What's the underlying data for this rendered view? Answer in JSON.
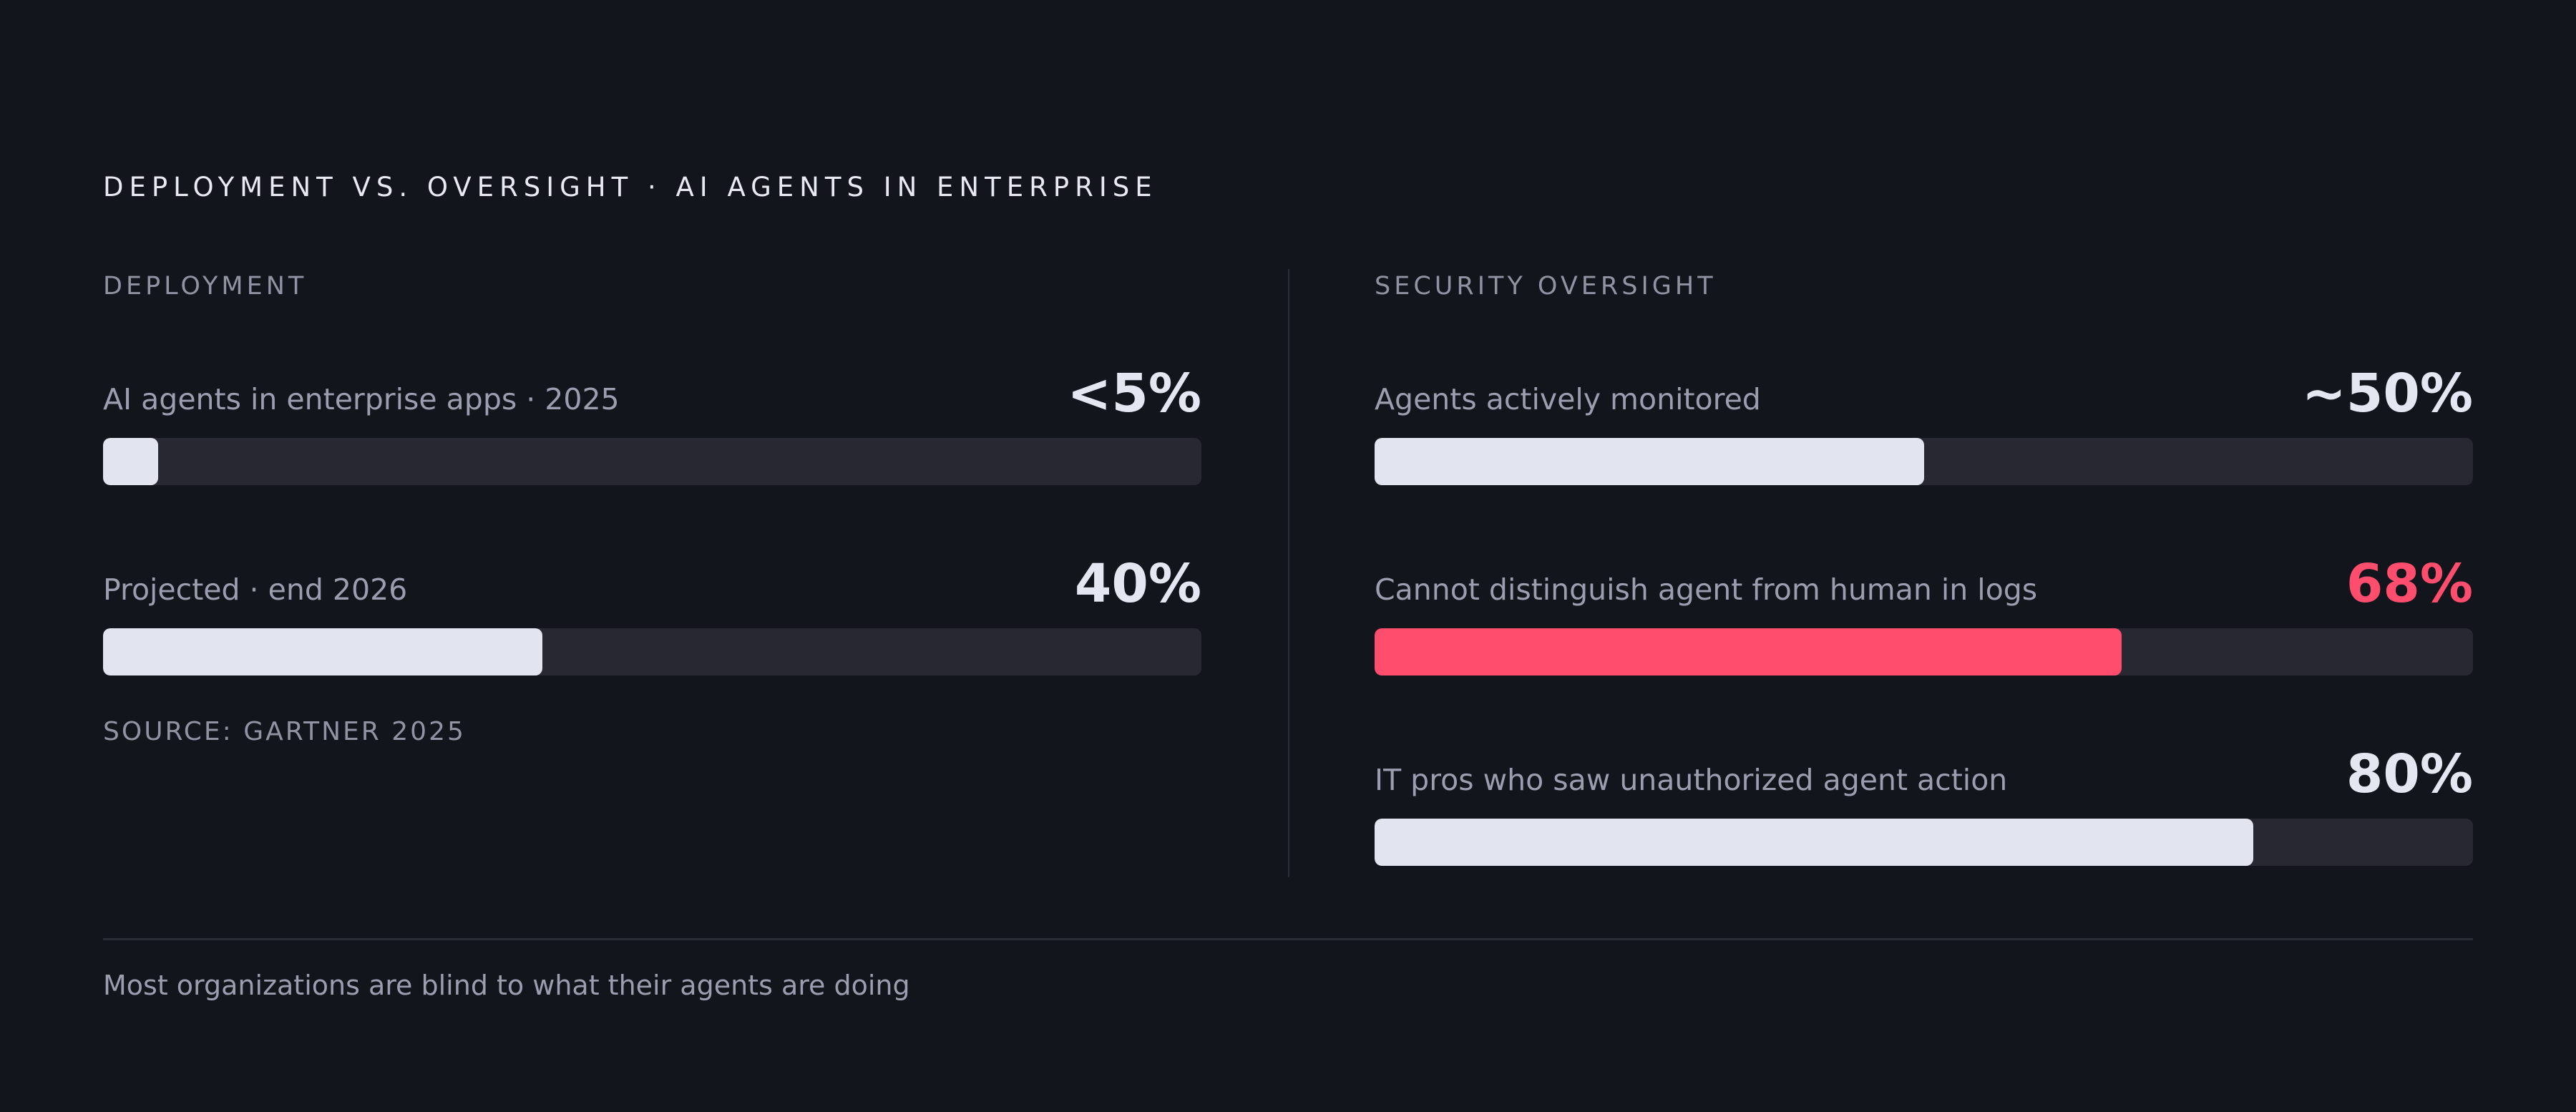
{
  "title": "DEPLOYMENT VS. OVERSIGHT · AI AGENTS IN ENTERPRISE",
  "colors": {
    "background": "#13151c",
    "bar_fill": "#e2e4ef",
    "bar_track": "#272831",
    "alert": "#ff4d6d"
  },
  "chart_data": [
    {
      "type": "bar",
      "title": "DEPLOYMENT",
      "categories": [
        "AI agents in enterprise apps · 2025",
        "Projected · end 2026"
      ],
      "value_labels": [
        "<5%",
        "40%"
      ],
      "values": [
        5,
        40
      ],
      "ylim": [
        0,
        100
      ],
      "highlight": [
        false,
        false
      ],
      "source": "SOURCE: GARTNER 2025"
    },
    {
      "type": "bar",
      "title": "SECURITY OVERSIGHT",
      "categories": [
        "Agents actively monitored",
        "Cannot distinguish agent from human in logs",
        "IT pros who saw unauthorized agent action"
      ],
      "value_labels": [
        "~50%",
        "68%",
        "80%"
      ],
      "values": [
        50,
        68,
        80
      ],
      "ylim": [
        0,
        100
      ],
      "highlight": [
        false,
        true,
        false
      ]
    }
  ],
  "footer": "Most organizations are blind to what their agents are doing"
}
